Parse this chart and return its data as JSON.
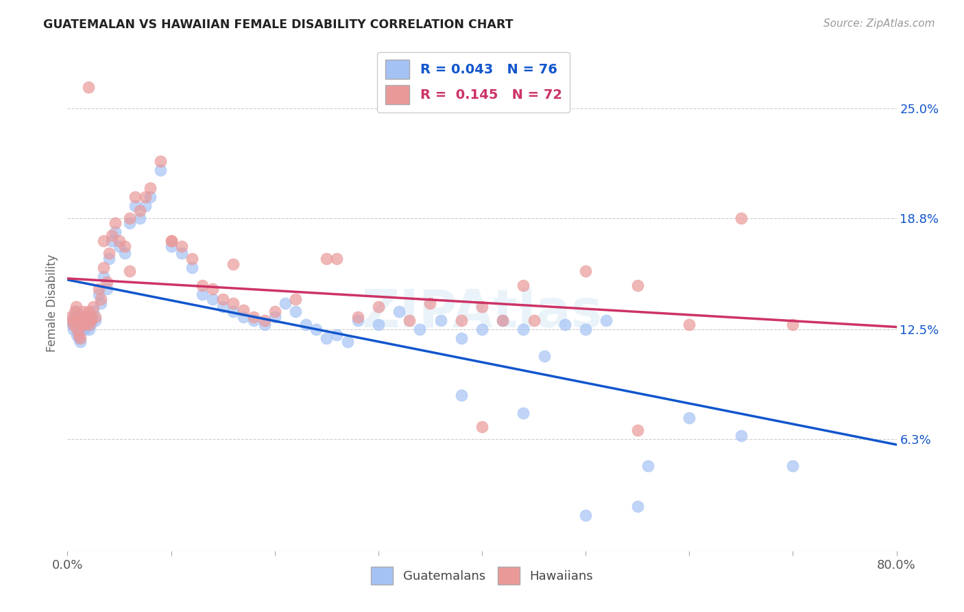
{
  "title": "GUATEMALAN VS HAWAIIAN FEMALE DISABILITY CORRELATION CHART",
  "source": "Source: ZipAtlas.com",
  "ylabel": "Female Disability",
  "xlim": [
    0.0,
    0.8
  ],
  "ylim": [
    0.0,
    0.28
  ],
  "xtick_positions": [
    0.0,
    0.1,
    0.2,
    0.3,
    0.4,
    0.5,
    0.6,
    0.7,
    0.8
  ],
  "xticklabels": [
    "0.0%",
    "",
    "",
    "",
    "",
    "",
    "",
    "",
    "80.0%"
  ],
  "ytick_positions": [
    0.063,
    0.125,
    0.188,
    0.25
  ],
  "ytick_labels": [
    "6.3%",
    "12.5%",
    "18.8%",
    "25.0%"
  ],
  "legend_R_blue": "0.043",
  "legend_N_blue": "76",
  "legend_R_pink": "0.145",
  "legend_N_pink": "72",
  "blue_color": "#a4c2f4",
  "pink_color": "#ea9999",
  "blue_line_color": "#1155cc",
  "pink_line_color": "#cc3366",
  "watermark": "ZIPAtlas",
  "guatemalans_x": [
    0.003,
    0.005,
    0.006,
    0.007,
    0.008,
    0.009,
    0.01,
    0.011,
    0.012,
    0.013,
    0.014,
    0.015,
    0.016,
    0.017,
    0.018,
    0.019,
    0.02,
    0.021,
    0.022,
    0.023,
    0.025,
    0.027,
    0.03,
    0.032,
    0.035,
    0.038,
    0.04,
    0.043,
    0.046,
    0.05,
    0.055,
    0.06,
    0.065,
    0.07,
    0.075,
    0.08,
    0.09,
    0.1,
    0.11,
    0.12,
    0.13,
    0.14,
    0.15,
    0.16,
    0.17,
    0.18,
    0.19,
    0.2,
    0.21,
    0.22,
    0.23,
    0.24,
    0.25,
    0.26,
    0.27,
    0.28,
    0.3,
    0.32,
    0.34,
    0.36,
    0.38,
    0.4,
    0.42,
    0.44,
    0.46,
    0.48,
    0.5,
    0.52,
    0.56,
    0.6,
    0.65,
    0.7,
    0.38,
    0.44,
    0.5,
    0.55
  ],
  "guatemalans_y": [
    0.13,
    0.128,
    0.125,
    0.132,
    0.135,
    0.122,
    0.128,
    0.12,
    0.118,
    0.13,
    0.125,
    0.132,
    0.128,
    0.125,
    0.13,
    0.128,
    0.132,
    0.125,
    0.128,
    0.13,
    0.135,
    0.13,
    0.145,
    0.14,
    0.155,
    0.148,
    0.165,
    0.175,
    0.18,
    0.172,
    0.168,
    0.185,
    0.195,
    0.188,
    0.195,
    0.2,
    0.215,
    0.172,
    0.168,
    0.16,
    0.145,
    0.142,
    0.138,
    0.135,
    0.132,
    0.13,
    0.128,
    0.132,
    0.14,
    0.135,
    0.128,
    0.125,
    0.12,
    0.122,
    0.118,
    0.13,
    0.128,
    0.135,
    0.125,
    0.13,
    0.12,
    0.125,
    0.13,
    0.125,
    0.11,
    0.128,
    0.125,
    0.13,
    0.048,
    0.075,
    0.065,
    0.048,
    0.088,
    0.078,
    0.02,
    0.025
  ],
  "hawaiians_x": [
    0.003,
    0.005,
    0.006,
    0.007,
    0.008,
    0.009,
    0.01,
    0.011,
    0.012,
    0.013,
    0.014,
    0.015,
    0.016,
    0.017,
    0.018,
    0.019,
    0.02,
    0.021,
    0.022,
    0.023,
    0.025,
    0.027,
    0.03,
    0.032,
    0.035,
    0.038,
    0.04,
    0.043,
    0.046,
    0.05,
    0.055,
    0.06,
    0.065,
    0.07,
    0.075,
    0.08,
    0.09,
    0.1,
    0.11,
    0.12,
    0.13,
    0.14,
    0.15,
    0.16,
    0.17,
    0.18,
    0.19,
    0.2,
    0.22,
    0.25,
    0.28,
    0.3,
    0.33,
    0.35,
    0.38,
    0.4,
    0.42,
    0.44,
    0.45,
    0.5,
    0.55,
    0.6,
    0.65,
    0.7,
    0.02,
    0.035,
    0.06,
    0.1,
    0.16,
    0.26,
    0.4,
    0.55
  ],
  "hawaiians_y": [
    0.132,
    0.13,
    0.128,
    0.135,
    0.138,
    0.125,
    0.13,
    0.122,
    0.12,
    0.132,
    0.128,
    0.135,
    0.13,
    0.128,
    0.132,
    0.13,
    0.135,
    0.128,
    0.13,
    0.132,
    0.138,
    0.132,
    0.148,
    0.142,
    0.16,
    0.152,
    0.168,
    0.178,
    0.185,
    0.175,
    0.172,
    0.188,
    0.2,
    0.192,
    0.2,
    0.205,
    0.22,
    0.175,
    0.172,
    0.165,
    0.15,
    0.148,
    0.142,
    0.14,
    0.136,
    0.132,
    0.13,
    0.135,
    0.142,
    0.165,
    0.132,
    0.138,
    0.13,
    0.14,
    0.13,
    0.138,
    0.13,
    0.15,
    0.13,
    0.158,
    0.15,
    0.128,
    0.188,
    0.128,
    0.262,
    0.175,
    0.158,
    0.175,
    0.162,
    0.165,
    0.07,
    0.068
  ]
}
